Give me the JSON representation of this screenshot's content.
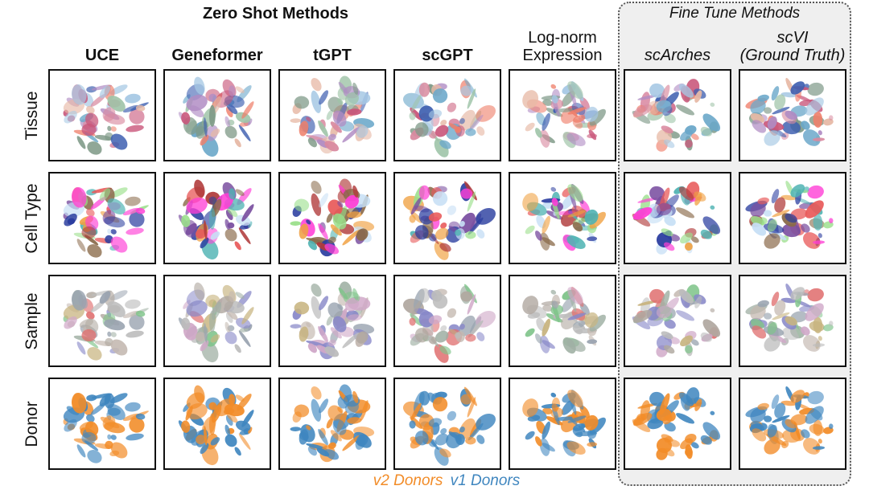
{
  "header": {
    "zero_shot_title": "Zero Shot Methods",
    "fine_tune_title": "Fine Tune Methods"
  },
  "columns": [
    {
      "id": "uce",
      "lines": [
        "UCE"
      ],
      "style": "bold"
    },
    {
      "id": "geneformer",
      "lines": [
        "Geneformer"
      ],
      "style": "bold"
    },
    {
      "id": "tgpt",
      "lines": [
        "tGPT"
      ],
      "style": "bold"
    },
    {
      "id": "scgpt",
      "lines": [
        "scGPT"
      ],
      "style": "bold"
    },
    {
      "id": "lognorm",
      "lines": [
        "Log-norm",
        "Expression"
      ],
      "style": "normal"
    },
    {
      "id": "scarches",
      "lines": [
        "scArches"
      ],
      "style": "italic"
    },
    {
      "id": "scvi",
      "lines": [
        "scVI",
        "(Ground Truth)"
      ],
      "style": "italic"
    }
  ],
  "rows": [
    "Tissue",
    "Cell Type",
    "Sample",
    "Donor"
  ],
  "row_palettes": {
    "Tissue": [
      "#c9567a",
      "#d98aa0",
      "#7f9a88",
      "#6aa7c9",
      "#b08cc4",
      "#e7b9a6",
      "#9fc4a8",
      "#3e5fb0",
      "#ef7f6b",
      "#a6c8e4"
    ],
    "Cell Type": [
      "#ff3fd6",
      "#2a3d9f",
      "#e85a5a",
      "#4fb3b3",
      "#8a6a4a",
      "#9adf8a",
      "#c7dff5",
      "#f0a040",
      "#7a4fa0",
      "#b03a3a"
    ],
    "Sample": [
      "#b0a8a0",
      "#9aa4b0",
      "#c4b8b0",
      "#a0b0a4",
      "#d0a8c8",
      "#7fc48a",
      "#8888c8",
      "#c8b480",
      "#e07070",
      "#bcbcbc"
    ],
    "Donor": [
      "#f28c28",
      "#3f86bf"
    ]
  },
  "legend": [
    {
      "text": "v2 Donors",
      "color": "#f28c28"
    },
    {
      "text": "v1 Donors",
      "color": "#3f86bf"
    }
  ]
}
